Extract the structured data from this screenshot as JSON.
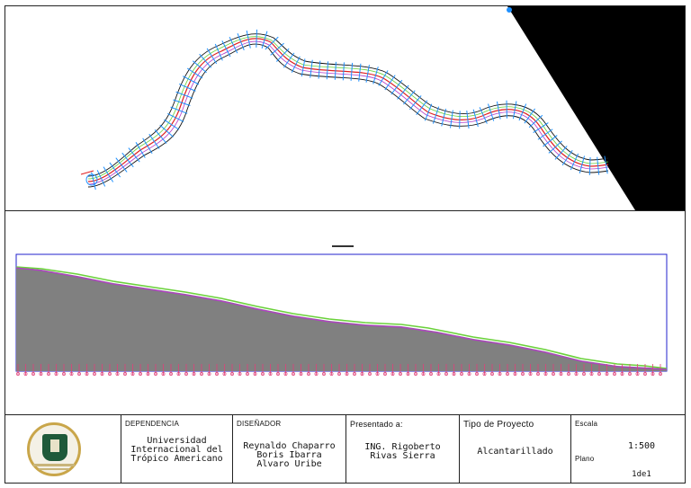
{
  "title_block": {
    "logo": {
      "icon": "university-seal-icon"
    },
    "dependencia": {
      "label": "DEPENDENCIA",
      "lines": [
        "Universidad",
        "Internacional del",
        "Trópico Americano"
      ]
    },
    "disenador": {
      "label": "DISEÑADOR",
      "lines": [
        "Reynaldo Chaparro",
        "Boris Ibarra",
        "Alvaro Uribe"
      ]
    },
    "presentado": {
      "label": "Presentado a:",
      "lines": [
        "ING. Rigoberto",
        "Rivas Sierra"
      ]
    },
    "tipo": {
      "label": "Tipo de Proyecto",
      "value": "Alcantarillado"
    },
    "escala": {
      "label": "Escala",
      "value": "1:500",
      "plano_label": "Plano",
      "plano_value": "1de1"
    }
  },
  "colors": {
    "ground_fill": "#808080",
    "ground_line": "#6ad13a",
    "design_line": "#b43cc8",
    "frame": "#2222cc",
    "stations": "#e0407a",
    "sections": "#1e90ff",
    "alignment": "#e02020"
  }
}
